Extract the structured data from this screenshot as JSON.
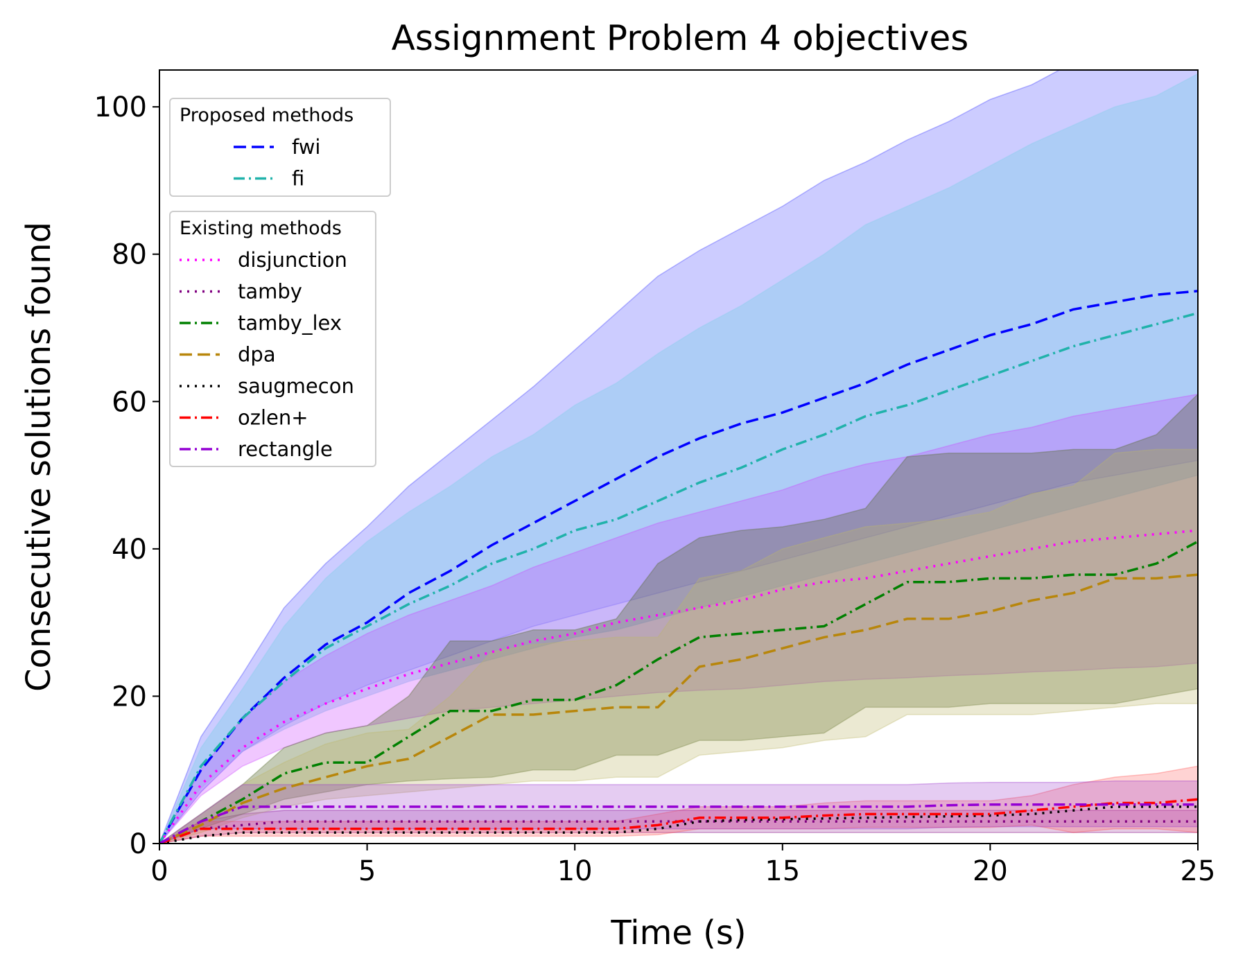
{
  "chart_data": {
    "type": "line",
    "title": "Assignment Problem 4 objectives",
    "xlabel": "Time (s)",
    "ylabel": "Consecutive solutions found",
    "xlim": [
      0,
      25
    ],
    "ylim": [
      0,
      105
    ],
    "xticks": [
      0,
      5,
      10,
      15,
      20,
      25
    ],
    "yticks": [
      0,
      20,
      40,
      60,
      80,
      100
    ],
    "legend_placement": "upper-left",
    "legend_groups": [
      {
        "title": "Proposed methods",
        "series": [
          "fwi",
          "fi"
        ]
      },
      {
        "title": "Existing methods",
        "series": [
          "disjunction",
          "tamby",
          "tamby_lex",
          "dpa",
          "saugmecon",
          "ozlen+",
          "rectangle"
        ]
      }
    ],
    "x": [
      0,
      1,
      2,
      3,
      4,
      5,
      6,
      7,
      8,
      9,
      10,
      11,
      12,
      13,
      14,
      15,
      16,
      17,
      18,
      19,
      20,
      21,
      22,
      23,
      24,
      25
    ],
    "series": [
      {
        "name": "fwi",
        "color": "#0000ff",
        "dash": "dashed",
        "band_color": "#3333ff",
        "band_opacity": 0.25,
        "values": [
          0,
          10,
          17,
          22.5,
          27,
          30,
          34,
          37,
          40.5,
          43.5,
          46.5,
          49.5,
          52.5,
          55,
          57,
          58.5,
          60.5,
          62.5,
          65,
          67,
          69,
          70.5,
          72.5,
          73.5,
          74.5,
          75
        ],
        "lower": [
          0,
          7,
          12.5,
          16,
          19,
          21.5,
          23.5,
          25.5,
          27.5,
          29.5,
          31,
          32.5,
          34,
          35.5,
          37,
          38.5,
          40,
          41.5,
          43,
          44.5,
          46,
          47.5,
          49,
          50,
          51,
          52
        ],
        "upper": [
          0,
          14.5,
          23,
          32,
          38,
          43,
          48.5,
          53,
          57.5,
          62,
          67,
          72,
          77,
          80.5,
          83.5,
          86.5,
          90,
          92.5,
          95.5,
          98,
          101,
          103,
          106,
          108,
          110,
          112
        ]
      },
      {
        "name": "fi",
        "color": "#20b2aa",
        "dash": "dashdot",
        "band_color": "#87ceeb",
        "band_opacity": 0.45,
        "values": [
          0,
          10.5,
          17,
          22,
          26.5,
          29.5,
          32.5,
          35,
          38,
          40,
          42.5,
          44,
          46.5,
          49,
          51,
          53.5,
          55.5,
          58,
          59.5,
          61.5,
          63.5,
          65.5,
          67.5,
          69,
          70.5,
          72
        ],
        "lower": [
          0,
          7.5,
          12.5,
          15.5,
          18,
          20,
          22,
          23.5,
          25,
          26.5,
          28,
          29,
          30.5,
          32,
          33.5,
          35,
          36.5,
          38,
          39.5,
          41,
          42.5,
          44,
          45.5,
          47,
          48.5,
          50
        ],
        "upper": [
          0,
          13,
          21,
          29.5,
          36,
          41,
          45,
          48.5,
          52.5,
          55.5,
          59.5,
          62.5,
          66.5,
          70,
          73,
          76.5,
          80,
          84,
          86.5,
          89,
          92,
          95,
          97.5,
          100,
          101.5,
          104.5
        ]
      },
      {
        "name": "disjunction",
        "color": "#ff00ff",
        "dash": "dotted",
        "band_color": "#cc44ff",
        "band_opacity": 0.3,
        "values": [
          0,
          8,
          13,
          16.5,
          19,
          21,
          23,
          24.5,
          26,
          27.5,
          28.5,
          30,
          31,
          32,
          33,
          34.5,
          35.5,
          36,
          37,
          38,
          39,
          40,
          41,
          41.5,
          42,
          42.5
        ],
        "lower": [
          0,
          6.5,
          10.5,
          13,
          15,
          16,
          17,
          18,
          18.5,
          19,
          19.5,
          20,
          20.5,
          20.8,
          21,
          21.5,
          22,
          22.3,
          22.5,
          22.8,
          23,
          23.3,
          23.5,
          23.8,
          24,
          24.5
        ],
        "upper": [
          0,
          10,
          17,
          22,
          25.5,
          28.5,
          31,
          33,
          35,
          37.5,
          39.5,
          41.5,
          43.5,
          45,
          46.5,
          48,
          50,
          51.5,
          52.5,
          54,
          55.5,
          56.5,
          58,
          59,
          60,
          61
        ]
      },
      {
        "name": "tamby",
        "color": "#800080",
        "dash": "dotted",
        "band_color": "#800080",
        "band_opacity": 0.2,
        "values": [
          0,
          2,
          2.5,
          3,
          3,
          3,
          3,
          3,
          3,
          3,
          3,
          3,
          3,
          3,
          3,
          3,
          3,
          3,
          3,
          3,
          3,
          3,
          3,
          3,
          3,
          3
        ],
        "lower": [
          0,
          1,
          1.5,
          1.5,
          1.5,
          1.5,
          1.5,
          1.5,
          1.5,
          1.5,
          1.5,
          1.5,
          1.5,
          1.5,
          1.5,
          1.5,
          1.5,
          1.5,
          1.5,
          1.5,
          1.5,
          1.5,
          1.5,
          1.5,
          1.5,
          1.5
        ],
        "upper": [
          0,
          3,
          4,
          4.5,
          4.5,
          4.5,
          4.5,
          4.5,
          4.5,
          4.5,
          4.5,
          4.5,
          4.5,
          4.5,
          4.5,
          4.5,
          4.5,
          4.5,
          4.5,
          4.5,
          4.5,
          4.5,
          4.5,
          4.5,
          4.5,
          4.5
        ]
      },
      {
        "name": "tamby_lex",
        "color": "#008000",
        "dash": "dashdot",
        "band_color": "#556b2f",
        "band_opacity": 0.35,
        "values": [
          0,
          3,
          6,
          9.5,
          11,
          11,
          14.5,
          18,
          18,
          19.5,
          19.5,
          21.5,
          25,
          28,
          28.5,
          29,
          29.5,
          32.5,
          35.5,
          35.5,
          36,
          36,
          36.5,
          36.5,
          38,
          41
        ],
        "lower": [
          0,
          2,
          4,
          6,
          7,
          8,
          8.5,
          8.8,
          9,
          10,
          10,
          12,
          12,
          14,
          14,
          14.5,
          15,
          18.5,
          18.5,
          18.5,
          19,
          19,
          19,
          19,
          20,
          21
        ],
        "upper": [
          0,
          4,
          8,
          13,
          15,
          16,
          20,
          27.5,
          27.5,
          29,
          29,
          30.5,
          38,
          41.5,
          42.5,
          43,
          44,
          45.5,
          52.5,
          53,
          53,
          53,
          53.5,
          53.5,
          55.5,
          61
        ]
      },
      {
        "name": "dpa",
        "color": "#b8860b",
        "dash": "dashed",
        "band_color": "#bdb76b",
        "band_opacity": 0.3,
        "values": [
          0,
          2.5,
          5.5,
          7.5,
          9,
          10.5,
          11.5,
          14.5,
          17.5,
          17.5,
          18,
          18.5,
          18.5,
          24,
          25,
          26.5,
          28,
          29,
          30.5,
          30.5,
          31.5,
          33,
          34,
          36,
          36,
          36.5
        ],
        "lower": [
          0,
          1.5,
          3.5,
          5,
          6,
          6.5,
          7,
          7.5,
          8,
          8.5,
          8.5,
          9,
          9,
          12,
          12.5,
          13,
          14,
          14.5,
          17.5,
          17.5,
          17.5,
          17.5,
          18,
          18.5,
          19,
          19
        ],
        "upper": [
          0,
          4,
          8,
          11,
          13.5,
          15,
          15.5,
          20,
          26,
          27,
          27.5,
          28,
          28,
          36,
          37,
          40,
          41.5,
          43,
          43.5,
          44,
          45,
          47.5,
          48.5,
          53,
          53.5,
          53.5
        ]
      },
      {
        "name": "saugmecon",
        "color": "#000000",
        "dash": "dotted",
        "band_color": "#000000",
        "band_opacity": 0.0,
        "values": [
          0,
          1,
          1.5,
          1.5,
          1.5,
          1.5,
          1.5,
          1.5,
          1.5,
          1.5,
          1.5,
          1.5,
          2,
          3,
          3.2,
          3.3,
          3.4,
          3.5,
          3.6,
          3.7,
          3.8,
          4,
          4.5,
          5,
          5,
          5
        ],
        "lower": [
          0,
          0.5,
          0.8,
          0.8,
          0.8,
          0.8,
          0.8,
          0.8,
          0.8,
          0.8,
          0.8,
          0.8,
          1,
          1.5,
          1.8,
          2,
          2,
          2,
          2.2,
          2.2,
          2.3,
          2.5,
          2.7,
          3,
          3,
          3
        ],
        "upper": [
          0,
          1.5,
          2,
          2,
          2,
          2,
          2,
          2,
          2,
          2,
          2,
          2,
          3,
          4,
          4.5,
          4.7,
          4.8,
          5,
          5,
          5.2,
          5.3,
          5.5,
          6,
          7,
          7,
          7
        ]
      },
      {
        "name": "ozlen+",
        "color": "#ff0000",
        "dash": "dashdot",
        "band_color": "#ff5050",
        "band_opacity": 0.25,
        "values": [
          0,
          2,
          2,
          2,
          2,
          2,
          2,
          2,
          2,
          2,
          2,
          2,
          2.5,
          3.5,
          3.5,
          3.5,
          3.8,
          4,
          4,
          4,
          4,
          4.5,
          5,
          5.5,
          5.5,
          6
        ],
        "lower": [
          0,
          1,
          1,
          1,
          1,
          1,
          1,
          1,
          1,
          1,
          1,
          1,
          1.2,
          2,
          2,
          2,
          2,
          2.2,
          2.2,
          2.2,
          2.2,
          2.5,
          1.5,
          2,
          2,
          1.5
        ],
        "upper": [
          0,
          3,
          3,
          3,
          3,
          3,
          3,
          3,
          3,
          3,
          3,
          3,
          4,
          5,
          5,
          5,
          5.5,
          5.8,
          5.8,
          5.8,
          5.8,
          6.5,
          8,
          9,
          9.5,
          10.5
        ]
      },
      {
        "name": "rectangle",
        "color": "#9400d3",
        "dash": "dashdot",
        "band_color": "#9932cc",
        "band_opacity": 0.25,
        "values": [
          0,
          3,
          5,
          5,
          5,
          5,
          5,
          5,
          5,
          5,
          5,
          5,
          5,
          5,
          5,
          5,
          5,
          5,
          5,
          5.2,
          5.3,
          5.3,
          5.3,
          5.3,
          5.3,
          5.3
        ],
        "lower": [
          0,
          2,
          2,
          2,
          2,
          2,
          2,
          2,
          2,
          2,
          2,
          2,
          2,
          2,
          2,
          2,
          2,
          2,
          2,
          2.2,
          2.3,
          2.3,
          2.3,
          2.3,
          2.3,
          2.3
        ],
        "upper": [
          0,
          4,
          8,
          8,
          8,
          8,
          8,
          8,
          8,
          8,
          8,
          8,
          8,
          8,
          8,
          8,
          8,
          8,
          8,
          8.2,
          8.3,
          8.3,
          8.3,
          8.5,
          8.5,
          8.5
        ]
      }
    ]
  }
}
